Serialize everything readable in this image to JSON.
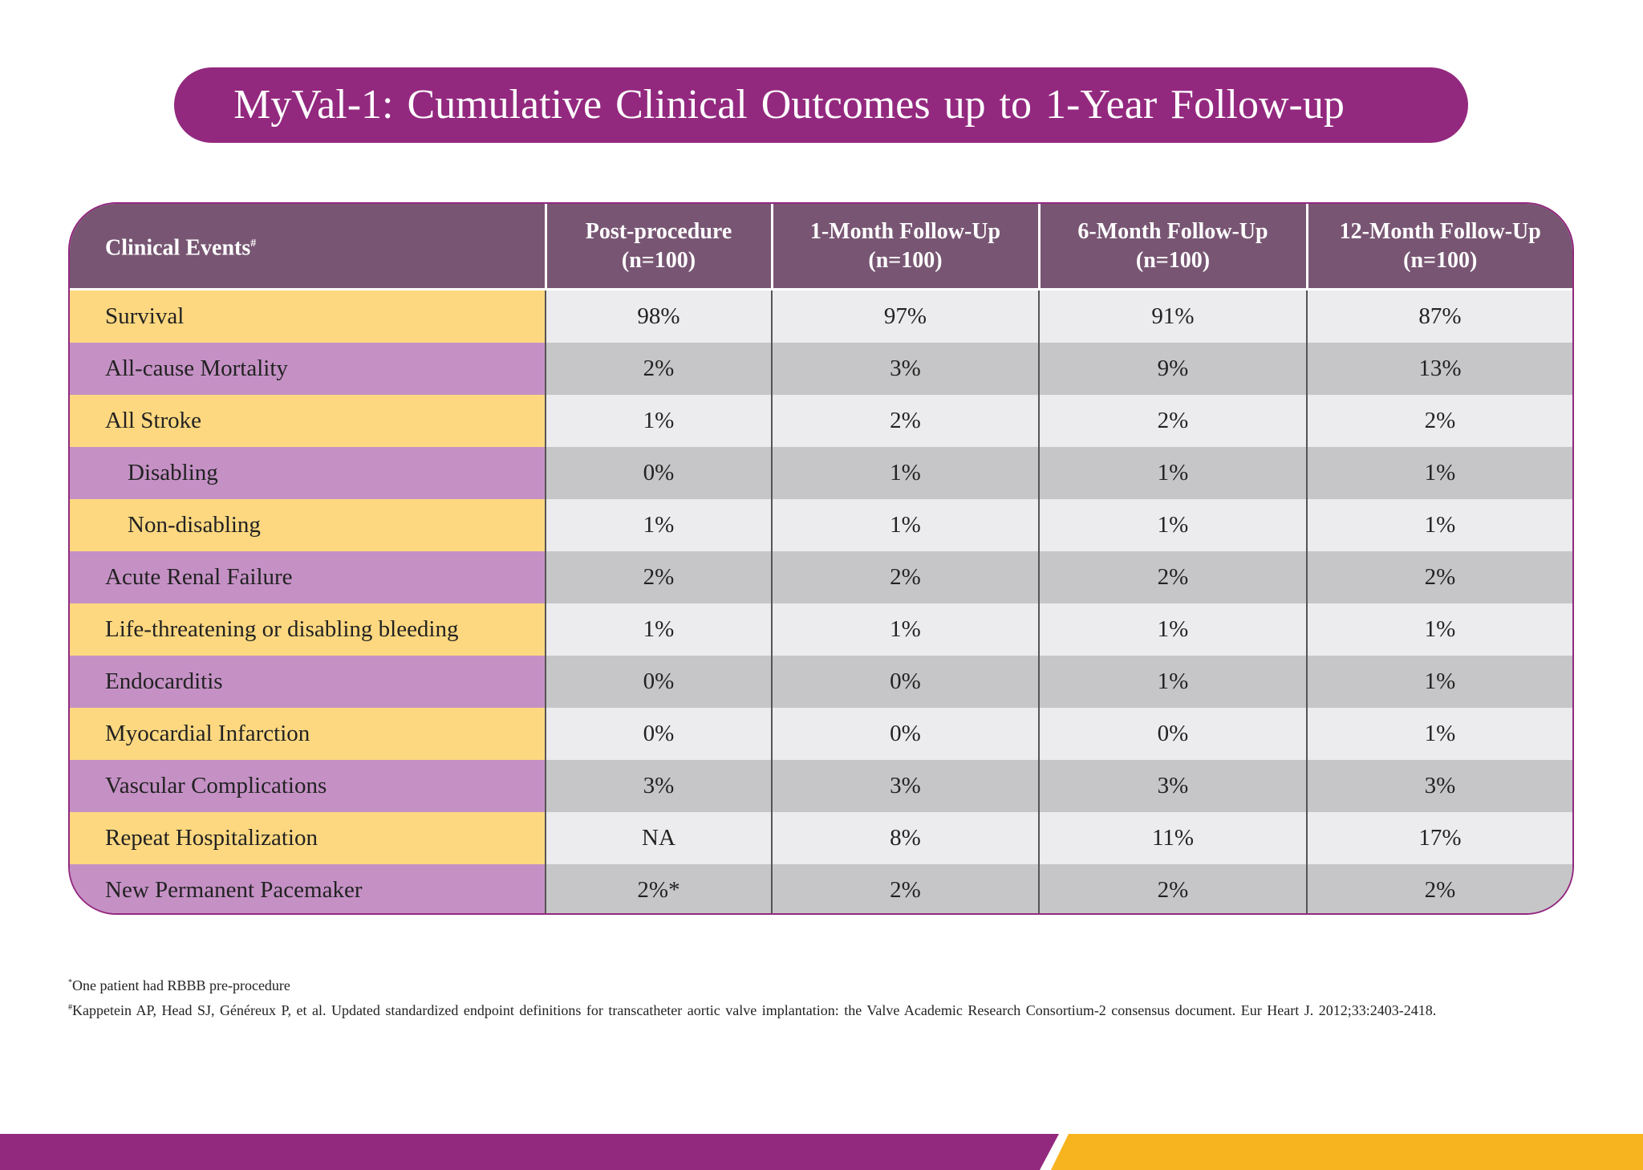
{
  "title": "MyVal-1: Cumulative Clinical Outcomes up to 1-Year Follow-up",
  "table": {
    "header": {
      "events": "Clinical Events",
      "events_mark": "#",
      "columns": [
        {
          "label": "Post-procedure",
          "n": "(n=100)"
        },
        {
          "label": "1-Month Follow-Up",
          "n": "(n=100)"
        },
        {
          "label": "6-Month Follow-Up",
          "n": "(n=100)"
        },
        {
          "label": "12-Month Follow-Up",
          "n": "(n=100)"
        }
      ]
    },
    "rows": [
      {
        "event": "Survival",
        "values": [
          "98%",
          "97%",
          "91%",
          "87%"
        ]
      },
      {
        "event": "All-cause Mortality",
        "values": [
          "2%",
          "3%",
          "9%",
          "13%"
        ]
      },
      {
        "event": "All Stroke",
        "values": [
          "1%",
          "2%",
          "2%",
          "2%"
        ]
      },
      {
        "event": "Disabling",
        "values": [
          "0%",
          "1%",
          "1%",
          "1%"
        ]
      },
      {
        "event": "Non-disabling",
        "values": [
          "1%",
          "1%",
          "1%",
          "1%"
        ]
      },
      {
        "event": "Acute Renal Failure",
        "values": [
          "2%",
          "2%",
          "2%",
          "2%"
        ]
      },
      {
        "event": "Life-threatening or disabling bleeding",
        "values": [
          "1%",
          "1%",
          "1%",
          "1%"
        ]
      },
      {
        "event": "Endocarditis",
        "values": [
          "0%",
          "0%",
          "1%",
          "1%"
        ]
      },
      {
        "event": "Myocardial Infarction",
        "values": [
          "0%",
          "0%",
          "0%",
          "1%"
        ]
      },
      {
        "event": "Vascular Complications",
        "values": [
          "3%",
          "3%",
          "3%",
          "3%"
        ]
      },
      {
        "event": "Repeat Hospitalization",
        "values": [
          "NA",
          "8%",
          "11%",
          "17%"
        ]
      },
      {
        "event": "New Permanent Pacemaker",
        "values": [
          "2%*",
          "2%",
          "2%",
          "2%"
        ]
      }
    ]
  },
  "footnotes": [
    {
      "mark": "*",
      "text": "One patient had RBBB pre-procedure"
    },
    {
      "mark": "#",
      "text": "Kappetein AP, Head SJ, Généreux P, et al. Updated standardized endpoint definitions for transcatheter aortic valve implantation: the Valve Academic Research Consortium-2 consensus document. Eur Heart J. 2012;33:2403-2418."
    }
  ],
  "colors": {
    "brand_purple": "#93297f",
    "header": "#785673",
    "yellow": "#fdd880",
    "lilac": "#c591c5",
    "footer_yellow": "#f8b41e"
  }
}
